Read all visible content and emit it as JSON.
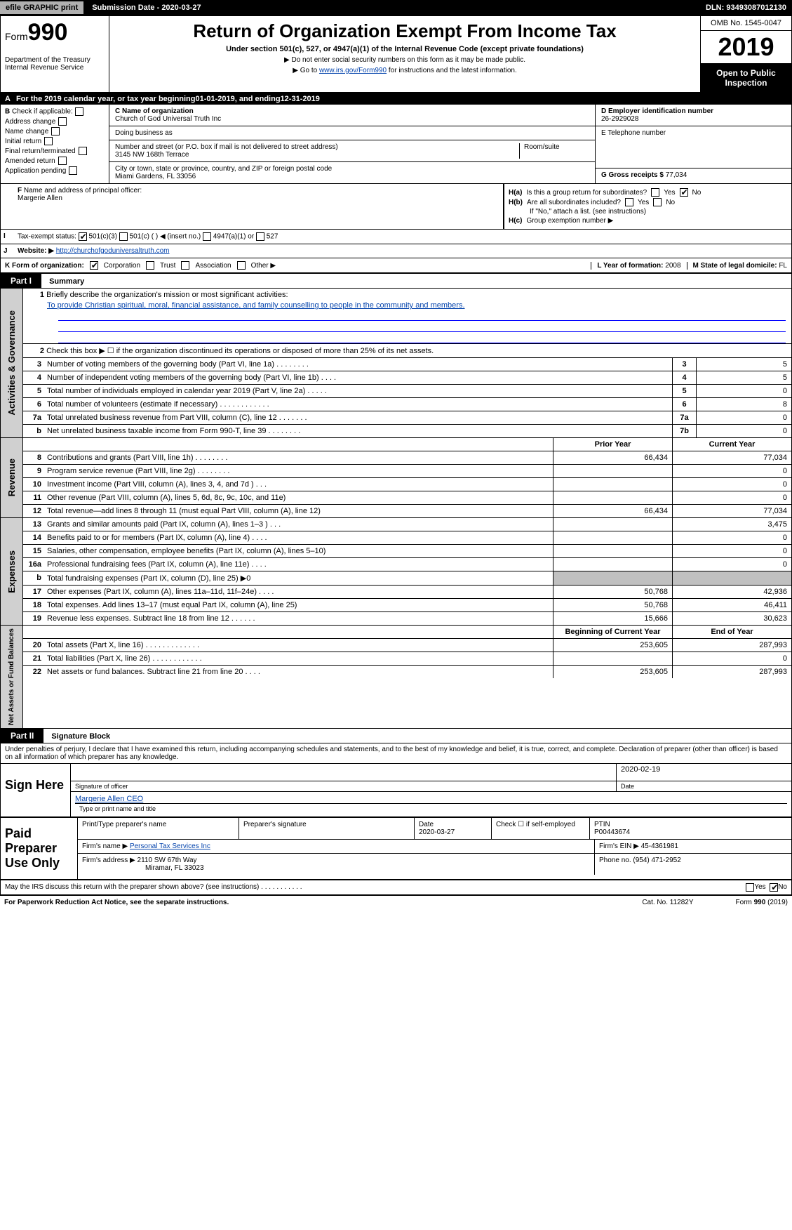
{
  "topbar": {
    "efile": "efile GRAPHIC print",
    "submission": "Submission Date - 2020-03-27",
    "dln": "DLN: 93493087012130"
  },
  "header": {
    "form_prefix": "Form",
    "form_number": "990",
    "title": "Return of Organization Exempt From Income Tax",
    "subtitle": "Under section 501(c), 527, or 4947(a)(1) of the Internal Revenue Code (except private foundations)",
    "note1": "▶ Do not enter social security numbers on this form as it may be made public.",
    "note2_prefix": "▶ Go to ",
    "note2_link": "www.irs.gov/Form990",
    "note2_suffix": " for instructions and the latest information.",
    "dept": "Department of the Treasury\nInternal Revenue Service",
    "omb": "OMB No. 1545-0047",
    "year": "2019",
    "open": "Open to Public Inspection"
  },
  "row_a": {
    "prefix": "A",
    "text1": "For the 2019 calendar year, or tax year beginning ",
    "begin": "01-01-2019",
    "text2": ", and ending ",
    "end": "12-31-2019"
  },
  "section_b": {
    "label": "B",
    "check_label": "Check if applicable:",
    "checks": [
      "Address change",
      "Name change",
      "Initial return",
      "Final return/terminated",
      "Amended return",
      "Application pending"
    ],
    "c_label": "C Name of organization",
    "org_name": "Church of God Universal Truth Inc",
    "dba_label": "Doing business as",
    "addr_label": "Number and street (or P.O. box if mail is not delivered to street address)",
    "room_label": "Room/suite",
    "address": "3145 NW 168th Terrace",
    "city_label": "City or town, state or province, country, and ZIP or foreign postal code",
    "city": "Miami Gardens, FL  33056",
    "d_label": "D Employer identification number",
    "ein": "26-2929028",
    "e_label": "E Telephone number",
    "g_label": "G Gross receipts $ ",
    "g_value": "77,034"
  },
  "f": {
    "label": "F",
    "text": "Name and address of principal officer:",
    "name": "Margerie Allen"
  },
  "h": {
    "a_label": "H(a)",
    "a_text": "Is this a group return for subordinates?",
    "b_label": "H(b)",
    "b_text": "Are all subordinates included?",
    "b_note": "If \"No,\" attach a list. (see instructions)",
    "c_label": "H(c)",
    "c_text": "Group exemption number ▶",
    "yes": "Yes",
    "no": "No"
  },
  "i": {
    "label": "I",
    "text": "Tax-exempt status:",
    "opts": [
      "501(c)(3)",
      "501(c) (  ) ◀ (insert no.)",
      "4947(a)(1) or",
      "527"
    ]
  },
  "j": {
    "label": "J",
    "text": "Website: ▶",
    "url": "http://churchofgoduniversaltruth.com"
  },
  "k": {
    "text": "K Form of organization:",
    "opts": [
      "Corporation",
      "Trust",
      "Association",
      "Other ▶"
    ],
    "l_text": "L Year of formation: ",
    "l_val": "2008",
    "m_text": "M State of legal domicile: ",
    "m_val": "FL"
  },
  "part1": {
    "label": "Part I",
    "title": "Summary",
    "line1_num": "1",
    "line1": "Briefly describe the organization's mission or most significant activities:",
    "mission": "To provide Christian spiritual, moral, financial assistance, and family counselling to people in the community and members.",
    "line2_num": "2",
    "line2": "Check this box ▶ ☐ if the organization discontinued its operations or disposed of more than 25% of its net assets."
  },
  "activities_lines": [
    {
      "n": "3",
      "d": "Number of voting members of the governing body (Part VI, line 1a)   .    .    .    .    .    .    .    .",
      "rn": "3",
      "v": "5"
    },
    {
      "n": "4",
      "d": "Number of independent voting members of the governing body (Part VI, line 1b)   .    .    .    .",
      "rn": "4",
      "v": "5"
    },
    {
      "n": "5",
      "d": "Total number of individuals employed in calendar year 2019 (Part V, line 2a)   .    .    .    .    .",
      "rn": "5",
      "v": "0"
    },
    {
      "n": "6",
      "d": "Total number of volunteers (estimate if necessary)   .    .    .    .    .    .    .    .    .    .    .    .",
      "rn": "6",
      "v": "8"
    },
    {
      "n": "7a",
      "d": "Total unrelated business revenue from Part VIII, column (C), line 12   .    .    .    .    .    .    .",
      "rn": "7a",
      "v": "0"
    },
    {
      "n": "b",
      "d": "Net unrelated business taxable income from Form 990-T, line 39   .    .    .    .    .    .    .    .",
      "rn": "7b",
      "v": "0"
    }
  ],
  "two_col_header": {
    "prior": "Prior Year",
    "current": "Current Year"
  },
  "revenue_lines": [
    {
      "n": "8",
      "d": "Contributions and grants (Part VIII, line 1h)   .    .    .    .    .    .    .    .",
      "p": "66,434",
      "c": "77,034"
    },
    {
      "n": "9",
      "d": "Program service revenue (Part VIII, line 2g)   .    .    .    .    .    .    .    .",
      "p": "",
      "c": "0"
    },
    {
      "n": "10",
      "d": "Investment income (Part VIII, column (A), lines 3, 4, and 7d )   .    .    .",
      "p": "",
      "c": "0"
    },
    {
      "n": "11",
      "d": "Other revenue (Part VIII, column (A), lines 5, 6d, 8c, 9c, 10c, and 11e)",
      "p": "",
      "c": "0"
    },
    {
      "n": "12",
      "d": "Total revenue—add lines 8 through 11 (must equal Part VIII, column (A), line 12)",
      "p": "66,434",
      "c": "77,034"
    }
  ],
  "expense_lines": [
    {
      "n": "13",
      "d": "Grants and similar amounts paid (Part IX, column (A), lines 1–3 )   .    .    .",
      "p": "",
      "c": "3,475"
    },
    {
      "n": "14",
      "d": "Benefits paid to or for members (Part IX, column (A), line 4)   .    .    .    .",
      "p": "",
      "c": "0"
    },
    {
      "n": "15",
      "d": "Salaries, other compensation, employee benefits (Part IX, column (A), lines 5–10)",
      "p": "",
      "c": "0"
    },
    {
      "n": "16a",
      "d": "Professional fundraising fees (Part IX, column (A), line 11e)   .    .    .    .",
      "p": "",
      "c": "0"
    },
    {
      "n": "b",
      "d": "Total fundraising expenses (Part IX, column (D), line 25) ▶0",
      "p": "GRAY",
      "c": "GRAY"
    },
    {
      "n": "17",
      "d": "Other expenses (Part IX, column (A), lines 11a–11d, 11f–24e)   .    .    .    .",
      "p": "50,768",
      "c": "42,936"
    },
    {
      "n": "18",
      "d": "Total expenses. Add lines 13–17 (must equal Part IX, column (A), line 25)",
      "p": "50,768",
      "c": "46,411"
    },
    {
      "n": "19",
      "d": "Revenue less expenses. Subtract line 18 from line 12   .    .    .    .    .    .",
      "p": "15,666",
      "c": "30,623"
    }
  ],
  "net_header": {
    "begin": "Beginning of Current Year",
    "end": "End of Year"
  },
  "net_lines": [
    {
      "n": "20",
      "d": "Total assets (Part X, line 16)   .    .    .    .    .    .    .    .    .    .    .    .    .",
      "p": "253,605",
      "c": "287,993"
    },
    {
      "n": "21",
      "d": "Total liabilities (Part X, line 26)   .    .    .    .    .    .    .    .    .    .    .    .",
      "p": "",
      "c": "0"
    },
    {
      "n": "22",
      "d": "Net assets or fund balances. Subtract line 21 from line 20   .    .    .    .",
      "p": "253,605",
      "c": "287,993"
    }
  ],
  "vertical_labels": {
    "activities": "Activities & Governance",
    "revenue": "Revenue",
    "expenses": "Expenses",
    "net": "Net Assets or Fund Balances"
  },
  "part2": {
    "label": "Part II",
    "title": "Signature Block"
  },
  "perjury": "Under penalties of perjury, I declare that I have examined this return, including accompanying schedules and statements, and to the best of my knowledge and belief, it is true, correct, and complete. Declaration of preparer (other than officer) is based on all information of which preparer has any knowledge.",
  "sign": {
    "label": "Sign Here",
    "date": "2020-02-19",
    "sig_label": "Signature of officer",
    "date_label": "Date",
    "name": "Margerie Allen CEO",
    "name_label": "Type or print name and title"
  },
  "paid": {
    "label": "Paid Preparer Use Only",
    "col1": "Print/Type preparer's name",
    "col2": "Preparer's signature",
    "col3": "Date",
    "date": "2020-03-27",
    "col4_a": "Check ☐ if self-employed",
    "col5": "PTIN",
    "ptin": "P00443674",
    "firm_name_lbl": "Firm's name    ▶ ",
    "firm_name": "Personal Tax Services Inc",
    "firm_ein_lbl": "Firm's EIN ▶ ",
    "firm_ein": "45-4361981",
    "firm_addr_lbl": "Firm's address ▶ ",
    "firm_addr": "2110 SW 67th Way",
    "firm_city": "Miramar, FL  33023",
    "phone_lbl": "Phone no. ",
    "phone": "(954) 471-2952"
  },
  "discuss": {
    "text": "May the IRS discuss this return with the preparer shown above? (see instructions)   .    .    .    .    .    .    .    .    .    .    .",
    "yes": "Yes",
    "no": "No"
  },
  "footer": {
    "left": "For Paperwork Reduction Act Notice, see the separate instructions.",
    "center": "Cat. No. 11282Y",
    "right": "Form 990 (2019)"
  }
}
